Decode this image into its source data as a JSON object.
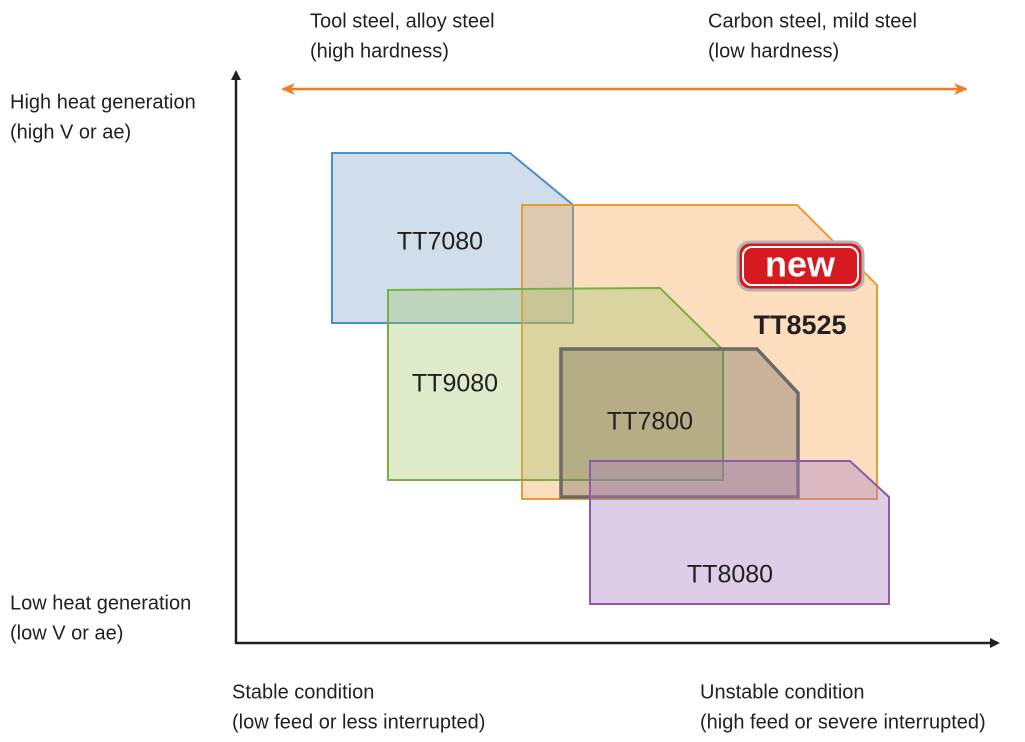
{
  "header": {
    "left_material": [
      "Tool steel, alloy steel",
      "(high hardness)"
    ],
    "right_material": [
      "Carbon steel, mild steel",
      "(low hardness)"
    ]
  },
  "y_axis": {
    "top": [
      "High heat generation",
      "(high V or ae)"
    ],
    "bottom": [
      "Low heat generation",
      "(low V or ae)"
    ]
  },
  "x_axis": {
    "left": [
      "Stable condition",
      "(low feed or less interrupted)"
    ],
    "right": [
      "Unstable condition",
      "(high feed or severe interrupted)"
    ]
  },
  "grades": [
    {
      "label": "TT7080"
    },
    {
      "label": "TT8525",
      "badge": "new"
    },
    {
      "label": "TT9080"
    },
    {
      "label": "TT7800"
    },
    {
      "label": "TT8080"
    }
  ]
}
